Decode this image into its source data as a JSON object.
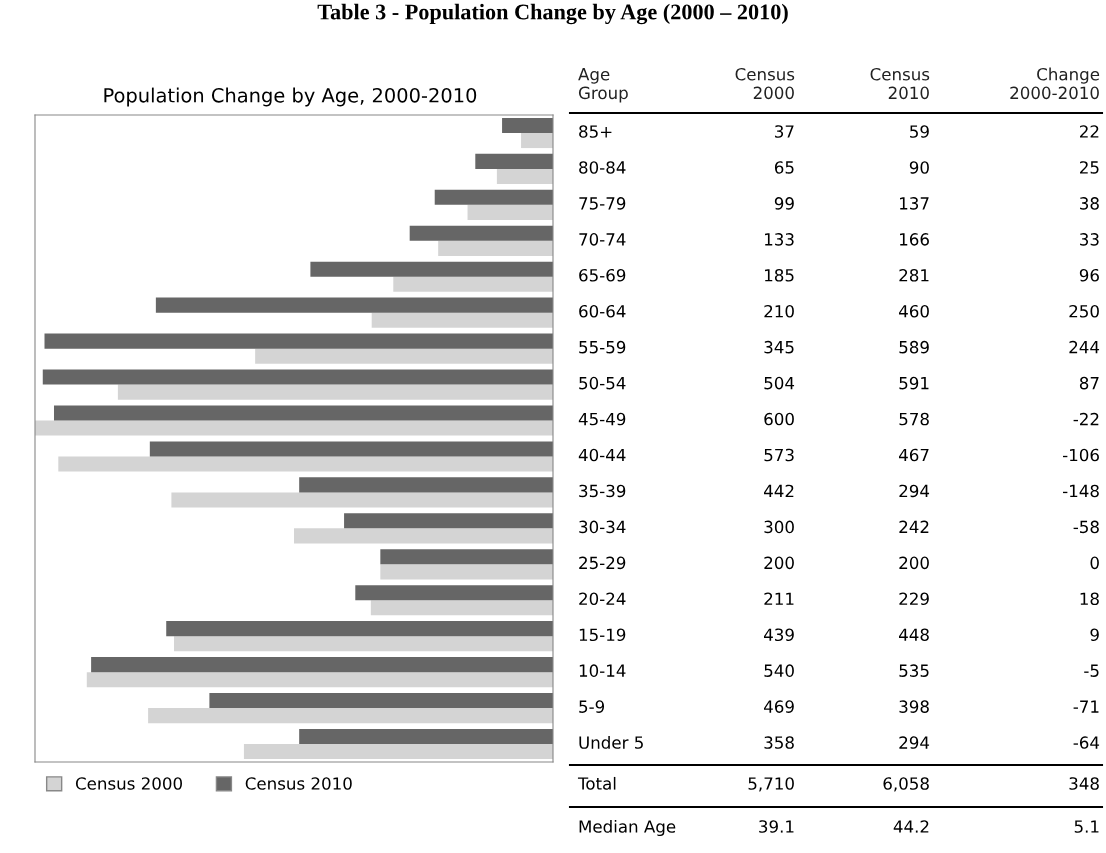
{
  "chart_data": {
    "type": "bar",
    "orientation": "horizontal",
    "title": "Population Change by Age, 2000-2010",
    "ylabel": "Age Group",
    "annotations": [
      "Table 3 - Population Change by Age (2000 – 2010)",
      "Change 2000-2010",
      "Total",
      "5,710",
      "6,058",
      "348",
      "Median Age",
      "39.1",
      "44.2",
      "5.1",
      "Census 2000",
      "Census 2010",
      "22",
      "25",
      "38",
      "33",
      "96",
      "250",
      "244",
      "87",
      "-22",
      "-106",
      "-148",
      "-58",
      "0",
      "18",
      "9",
      "-5",
      "-71",
      "-64"
    ],
    "categories": [
      "85+",
      "80-84",
      "75-79",
      "70-74",
      "65-69",
      "60-64",
      "55-59",
      "50-54",
      "45-49",
      "40-44",
      "35-39",
      "30-34",
      "25-29",
      "20-24",
      "15-19",
      "10-14",
      "5-9",
      "Under 5"
    ],
    "series": [
      {
        "name": "Census 2000",
        "color": "#d4d4d4",
        "values": [
          37,
          65,
          99,
          133,
          185,
          210,
          345,
          504,
          600,
          573,
          442,
          300,
          200,
          211,
          439,
          540,
          469,
          358
        ]
      },
      {
        "name": "Census 2010",
        "color": "#666666",
        "values": [
          59,
          90,
          137,
          166,
          281,
          460,
          589,
          591,
          578,
          467,
          294,
          242,
          200,
          229,
          448,
          535,
          398,
          294
        ]
      }
    ],
    "xlim": [
      600,
      0
    ],
    "data_labels": true,
    "legend": "bottom left"
  }
}
